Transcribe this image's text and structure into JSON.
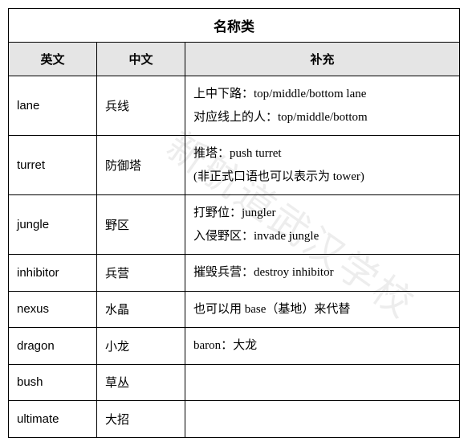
{
  "title": "名称类",
  "watermark": "新航道武汉学校",
  "columns": {
    "en": "英文",
    "cn": "中文",
    "extra": "补充"
  },
  "colwidths": {
    "en": 110,
    "cn": 110,
    "extra": 343
  },
  "rows": [
    {
      "en": "lane",
      "cn": "兵线",
      "extra": "上中下路：top/middle/bottom lane\n对应线上的人：top/middle/bottom"
    },
    {
      "en": "turret",
      "cn": "防御塔",
      "extra": "推塔：push turret\n(非正式口语也可以表示为 tower)"
    },
    {
      "en": "jungle",
      "cn": "野区",
      "extra": "打野位：jungler\n入侵野区：invade jungle"
    },
    {
      "en": "inhibitor",
      "cn": "兵营",
      "extra": "摧毁兵营：destroy inhibitor"
    },
    {
      "en": "nexus",
      "cn": "水晶",
      "extra": "也可以用 base（基地）来代替"
    },
    {
      "en": "dragon",
      "cn": "小龙",
      "extra": "baron：大龙"
    },
    {
      "en": "bush",
      "cn": "草丛",
      "extra": ""
    },
    {
      "en": "ultimate",
      "cn": "大招",
      "extra": ""
    }
  ],
  "styles": {
    "border_color": "#000000",
    "header_bg": "#e5e5e5",
    "body_bg": "#ffffff",
    "title_fontsize": 17,
    "header_fontsize": 15,
    "cell_fontsize": 15,
    "watermark_color": "rgba(0,0,0,0.07)",
    "watermark_fontsize": 48
  }
}
